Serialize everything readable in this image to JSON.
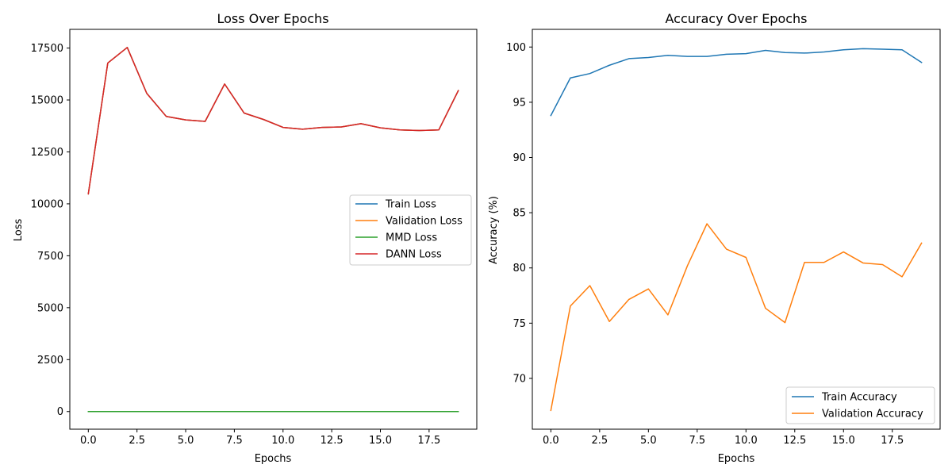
{
  "chart_data": [
    {
      "type": "line",
      "title": "Loss Over Epochs",
      "xlabel": "Epochs",
      "ylabel": "Loss",
      "xlim": [
        -0.95,
        19.95
      ],
      "ylim": [
        -850,
        18400
      ],
      "xticks": [
        0.0,
        2.5,
        5.0,
        7.5,
        10.0,
        12.5,
        15.0,
        17.5
      ],
      "xtick_labels": [
        "0.0",
        "2.5",
        "5.0",
        "7.5",
        "10.0",
        "12.5",
        "15.0",
        "17.5"
      ],
      "yticks": [
        0,
        2500,
        5000,
        7500,
        10000,
        12500,
        15000,
        17500
      ],
      "ytick_labels": [
        "0",
        "2500",
        "5000",
        "7500",
        "10000",
        "12500",
        "15000",
        "17500"
      ],
      "grid": false,
      "legend_position": "center-right",
      "x": [
        0,
        1,
        2,
        3,
        4,
        5,
        6,
        7,
        8,
        9,
        10,
        11,
        12,
        13,
        14,
        15,
        16,
        17,
        18,
        19
      ],
      "series": [
        {
          "name": "Train Loss",
          "color": "#1f77b4",
          "values": [
            10480,
            16780,
            17530,
            15320,
            14210,
            14040,
            13970,
            15770,
            14370,
            14060,
            13680,
            13590,
            13680,
            13700,
            13860,
            13660,
            13560,
            13530,
            13560,
            15450
          ]
        },
        {
          "name": "Validation Loss",
          "color": "#ff7f0e",
          "values": [
            10480,
            16780,
            17530,
            15320,
            14210,
            14040,
            13970,
            15770,
            14370,
            14060,
            13680,
            13590,
            13680,
            13700,
            13860,
            13660,
            13560,
            13530,
            13560,
            15450
          ]
        },
        {
          "name": "MMD Loss",
          "color": "#2ca02c",
          "values": [
            0,
            0,
            0,
            0,
            0,
            0,
            0,
            0,
            0,
            0,
            0,
            0,
            0,
            0,
            0,
            0,
            0,
            0,
            0,
            0
          ]
        },
        {
          "name": "DANN Loss",
          "color": "#d62728",
          "values": [
            10480,
            16780,
            17530,
            15320,
            14210,
            14040,
            13970,
            15770,
            14370,
            14060,
            13680,
            13590,
            13680,
            13700,
            13860,
            13660,
            13560,
            13530,
            13560,
            15450
          ]
        }
      ]
    },
    {
      "type": "line",
      "title": "Accuracy Over Epochs",
      "xlabel": "Epochs",
      "ylabel": "Accuracy (%)",
      "xlim": [
        -0.95,
        19.95
      ],
      "ylim": [
        65.4,
        101.6
      ],
      "xticks": [
        0.0,
        2.5,
        5.0,
        7.5,
        10.0,
        12.5,
        15.0,
        17.5
      ],
      "xtick_labels": [
        "0.0",
        "2.5",
        "5.0",
        "7.5",
        "10.0",
        "12.5",
        "15.0",
        "17.5"
      ],
      "yticks": [
        70,
        75,
        80,
        85,
        90,
        95,
        100
      ],
      "ytick_labels": [
        "70",
        "75",
        "80",
        "85",
        "90",
        "95",
        "100"
      ],
      "grid": false,
      "legend_position": "lower-right",
      "x": [
        0,
        1,
        2,
        3,
        4,
        5,
        6,
        7,
        8,
        9,
        10,
        11,
        12,
        13,
        14,
        15,
        16,
        17,
        18,
        19
      ],
      "series": [
        {
          "name": "Train Accuracy",
          "color": "#1f77b4",
          "values": [
            93.8,
            97.2,
            97.6,
            98.35,
            98.95,
            99.05,
            99.25,
            99.15,
            99.15,
            99.35,
            99.4,
            99.7,
            99.5,
            99.45,
            99.55,
            99.75,
            99.85,
            99.8,
            99.75,
            98.6
          ]
        },
        {
          "name": "Validation Accuracy",
          "color": "#ff7f0e",
          "values": [
            67.1,
            76.55,
            78.4,
            75.15,
            77.15,
            78.1,
            75.75,
            80.2,
            84.0,
            81.7,
            80.95,
            76.35,
            75.05,
            80.5,
            80.5,
            81.45,
            80.45,
            80.3,
            79.2,
            82.25
          ]
        }
      ]
    }
  ]
}
